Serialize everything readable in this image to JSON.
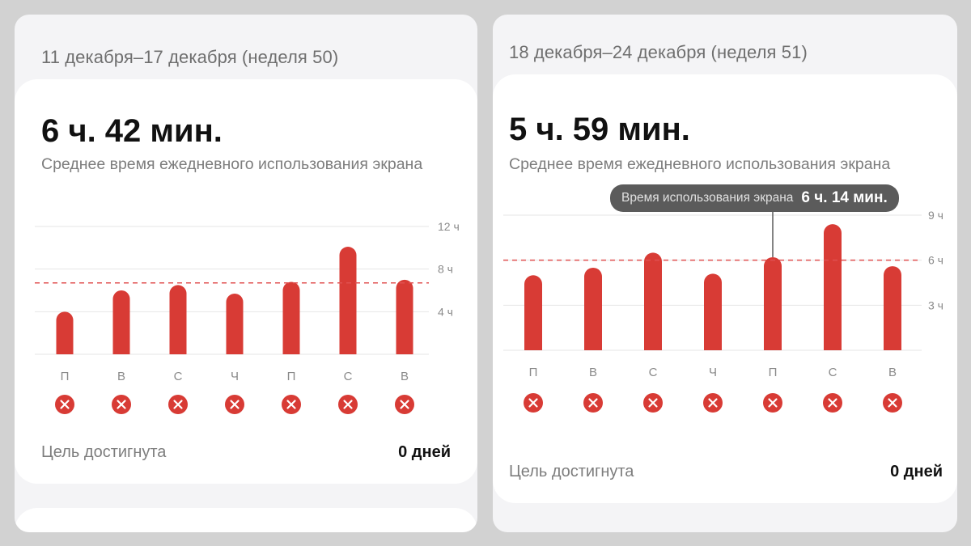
{
  "panels": [
    {
      "week_title": "11 декабря–17 декабря (неделя 50)",
      "average_time": "6 ч. 42 мин.",
      "subtitle": "Среднее время ежедневного использования экрана",
      "goal_label": "Цель достигнута",
      "goal_value": "0 дней"
    },
    {
      "week_title": "18 декабря–24 декабря (неделя 51)",
      "average_time": "5 ч. 59 мин.",
      "subtitle": "Среднее время ежедневного использования экрана",
      "goal_label": "Цель достигнута",
      "goal_value": "0 дней",
      "tooltip": {
        "label": "Время использования экрана",
        "value": "6 ч. 14 мин."
      }
    }
  ],
  "colors": {
    "bar": "#d83b35",
    "average_line": "#e05050",
    "grid": "#e6e6e6",
    "status_icon": "#d83b35"
  },
  "icons": {
    "status": "close-circle-icon"
  },
  "chart_data": [
    {
      "type": "bar",
      "categories": [
        "П",
        "В",
        "С",
        "Ч",
        "П",
        "С",
        "В"
      ],
      "values": [
        4.0,
        6.0,
        6.5,
        5.7,
        6.8,
        10.1,
        7.0
      ],
      "average": 6.7,
      "y_ticks": [
        "4 ч",
        "8 ч",
        "12 ч"
      ],
      "y_tick_values": [
        4,
        8,
        12
      ],
      "ylim": [
        0,
        12
      ],
      "grid": true
    },
    {
      "type": "bar",
      "categories": [
        "П",
        "В",
        "С",
        "Ч",
        "П",
        "С",
        "В"
      ],
      "values": [
        5.0,
        5.5,
        6.5,
        5.1,
        6.2,
        8.4,
        5.6
      ],
      "average": 6.0,
      "y_ticks": [
        "3 ч",
        "6 ч",
        "9 ч"
      ],
      "y_tick_values": [
        3,
        6,
        9
      ],
      "ylim": [
        0,
        9
      ],
      "grid": true,
      "highlight_index": 4
    }
  ]
}
